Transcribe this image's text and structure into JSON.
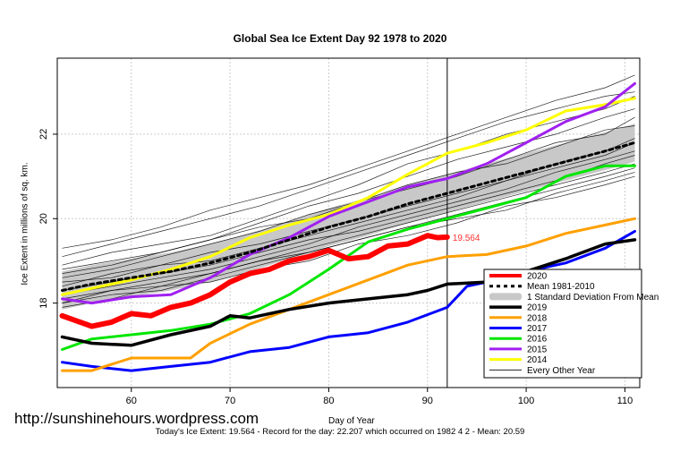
{
  "title": "Global Sea Ice Extent Day 92 1978 to 2020",
  "watermark": "http://sunshinehours.wordpress.com",
  "footnote": "Today's Ice Extent: 19.564  - Record for the day: 22.207 which occurred on 1982 4 2  - Mean: 20.59",
  "chart_data": {
    "type": "line",
    "title": "Global Sea Ice Extent Day 92 1978 to 2020",
    "xlabel": "Day of Year",
    "ylabel": "Ice Extent in millions of sq. km.",
    "xlim": [
      52.5,
      111.5
    ],
    "ylim": [
      16.0,
      23.8
    ],
    "x_ticks": [
      60,
      70,
      80,
      90,
      100,
      110
    ],
    "y_ticks": [
      18,
      20,
      22
    ],
    "grid": true,
    "legend_position": "bottom-right",
    "marker_day": 92,
    "annotation": {
      "x": 92,
      "y": 19.564,
      "text": "19.564",
      "color": "#ff3333"
    },
    "mean_band": {
      "x": [
        53,
        56,
        60,
        64,
        68,
        72,
        76,
        80,
        84,
        88,
        92,
        96,
        100,
        104,
        108,
        111
      ],
      "mean": [
        18.3,
        18.45,
        18.6,
        18.75,
        18.95,
        19.2,
        19.5,
        19.8,
        20.05,
        20.35,
        20.6,
        20.85,
        21.1,
        21.35,
        21.6,
        21.8
      ],
      "sd": [
        0.45,
        0.45,
        0.45,
        0.45,
        0.45,
        0.45,
        0.45,
        0.45,
        0.45,
        0.45,
        0.45,
        0.45,
        0.45,
        0.45,
        0.45,
        0.45
      ]
    },
    "series": [
      {
        "name": "2020",
        "color": "#ff0000",
        "width": 6,
        "x": [
          53,
          56,
          58,
          60,
          62,
          64,
          66,
          68,
          70,
          72,
          74,
          76,
          78,
          80,
          82,
          84,
          86,
          88,
          90,
          91,
          92
        ],
        "values": [
          17.7,
          17.45,
          17.55,
          17.75,
          17.7,
          17.9,
          18.0,
          18.2,
          18.5,
          18.7,
          18.8,
          19.0,
          19.1,
          19.25,
          19.05,
          19.1,
          19.35,
          19.4,
          19.6,
          19.55,
          19.564
        ]
      },
      {
        "name": "Mean 1981-2010",
        "color": "#000000",
        "width": 3,
        "dash": "4,4",
        "x": [
          53,
          56,
          60,
          64,
          68,
          72,
          76,
          80,
          84,
          88,
          92,
          96,
          100,
          104,
          108,
          111
        ],
        "values": [
          18.3,
          18.45,
          18.6,
          18.75,
          18.95,
          19.2,
          19.5,
          19.8,
          20.05,
          20.35,
          20.6,
          20.85,
          21.1,
          21.35,
          21.6,
          21.8
        ]
      },
      {
        "name": "2019",
        "color": "#000000",
        "width": 3.5,
        "x": [
          53,
          56,
          60,
          64,
          68,
          70,
          72,
          76,
          80,
          84,
          88,
          90,
          92,
          96,
          100,
          104,
          108,
          111
        ],
        "values": [
          17.2,
          17.05,
          17.0,
          17.25,
          17.45,
          17.7,
          17.65,
          17.85,
          18.0,
          18.1,
          18.2,
          18.3,
          18.45,
          18.5,
          18.75,
          19.05,
          19.4,
          19.5
        ]
      },
      {
        "name": "2018",
        "color": "#ffa000",
        "width": 3,
        "x": [
          53,
          56,
          60,
          64,
          66,
          68,
          72,
          76,
          80,
          84,
          88,
          92,
          96,
          100,
          104,
          108,
          111
        ],
        "values": [
          16.4,
          16.4,
          16.7,
          16.7,
          16.7,
          17.05,
          17.5,
          17.85,
          18.2,
          18.55,
          18.9,
          19.1,
          19.15,
          19.35,
          19.65,
          19.85,
          20.0
        ]
      },
      {
        "name": "2017",
        "color": "#0000ff",
        "width": 3,
        "x": [
          53,
          56,
          60,
          64,
          68,
          72,
          76,
          80,
          84,
          88,
          92,
          94,
          96,
          100,
          104,
          108,
          111
        ],
        "values": [
          16.6,
          16.5,
          16.4,
          16.5,
          16.6,
          16.85,
          16.95,
          17.2,
          17.3,
          17.55,
          17.9,
          18.4,
          18.5,
          18.75,
          18.95,
          19.3,
          19.7
        ]
      },
      {
        "name": "2016",
        "color": "#00e600",
        "width": 3,
        "x": [
          53,
          56,
          60,
          64,
          68,
          72,
          76,
          80,
          84,
          88,
          92,
          96,
          100,
          104,
          108,
          111
        ],
        "values": [
          16.9,
          17.15,
          17.25,
          17.35,
          17.5,
          17.75,
          18.2,
          18.8,
          19.45,
          19.75,
          20.0,
          20.25,
          20.5,
          21.0,
          21.25,
          21.25
        ]
      },
      {
        "name": "2015",
        "color": "#a020f0",
        "width": 3,
        "x": [
          53,
          56,
          60,
          64,
          68,
          72,
          76,
          80,
          84,
          88,
          92,
          96,
          100,
          104,
          108,
          111
        ],
        "values": [
          18.1,
          18.0,
          18.15,
          18.2,
          18.6,
          19.15,
          19.55,
          20.05,
          20.4,
          20.75,
          20.95,
          21.3,
          21.8,
          22.3,
          22.65,
          23.2
        ]
      },
      {
        "name": "2014",
        "color": "#ffff00",
        "width": 3,
        "x": [
          53,
          56,
          60,
          64,
          68,
          72,
          76,
          80,
          84,
          88,
          92,
          96,
          100,
          104,
          108,
          111
        ],
        "values": [
          18.2,
          18.35,
          18.55,
          18.8,
          19.1,
          19.55,
          19.85,
          20.1,
          20.5,
          21.05,
          21.55,
          21.8,
          22.1,
          22.55,
          22.7,
          22.85
        ]
      },
      {
        "name": "Every Other Year",
        "color": "#000000",
        "width": 0.8,
        "x": [
          53,
          111
        ],
        "values": [
          18.3,
          21.8
        ]
      }
    ],
    "other_years": {
      "color": "#000000",
      "x": [
        53,
        58,
        63,
        68,
        73,
        78,
        83,
        88,
        93,
        98,
        103,
        108,
        111
      ],
      "lines": [
        [
          18.2,
          18.4,
          18.6,
          18.8,
          19.1,
          19.4,
          19.8,
          20.1,
          20.4,
          20.7,
          21.1,
          21.4,
          21.6
        ],
        [
          18.8,
          19.0,
          19.2,
          19.5,
          19.9,
          20.3,
          20.6,
          21.0,
          21.4,
          21.7,
          22.0,
          22.4,
          22.6
        ],
        [
          18.0,
          18.2,
          18.3,
          18.6,
          18.9,
          19.2,
          19.5,
          19.8,
          20.1,
          20.4,
          20.7,
          21.0,
          21.2
        ],
        [
          19.1,
          19.4,
          19.7,
          20.0,
          20.3,
          20.7,
          21.1,
          21.5,
          21.9,
          22.3,
          22.6,
          22.9,
          23.0
        ],
        [
          18.5,
          18.6,
          18.9,
          19.2,
          19.4,
          19.7,
          20.0,
          20.3,
          20.6,
          20.9,
          21.2,
          21.5,
          21.8
        ],
        [
          17.9,
          18.1,
          18.4,
          18.5,
          18.8,
          19.0,
          19.4,
          19.6,
          19.9,
          20.3,
          20.5,
          20.8,
          21.0
        ],
        [
          18.6,
          18.8,
          19.1,
          19.4,
          19.7,
          20.1,
          20.4,
          20.8,
          21.1,
          21.3,
          21.7,
          22.1,
          22.2
        ],
        [
          18.4,
          18.7,
          18.9,
          19.0,
          19.3,
          19.6,
          19.9,
          20.2,
          20.5,
          20.9,
          21.3,
          21.6,
          21.9
        ],
        [
          18.9,
          19.2,
          19.4,
          19.6,
          20.0,
          20.4,
          20.8,
          21.3,
          21.6,
          22.0,
          22.3,
          22.6,
          22.9
        ],
        [
          18.1,
          18.3,
          18.5,
          18.7,
          19.0,
          19.3,
          19.6,
          19.9,
          20.2,
          20.5,
          20.8,
          21.1,
          21.3
        ],
        [
          18.7,
          18.9,
          19.2,
          19.5,
          19.8,
          20.0,
          20.4,
          20.7,
          21.0,
          21.4,
          21.8,
          22.0,
          22.4
        ],
        [
          18.3,
          18.5,
          18.7,
          18.9,
          19.2,
          19.5,
          19.7,
          20.0,
          20.3,
          20.6,
          20.9,
          21.3,
          21.5
        ],
        [
          19.3,
          19.5,
          19.8,
          20.2,
          20.5,
          20.8,
          21.2,
          21.6,
          22.0,
          22.4,
          22.8,
          23.1,
          23.4
        ],
        [
          18.0,
          18.3,
          18.4,
          18.7,
          19.0,
          19.2,
          19.5,
          19.8,
          20.0,
          20.2,
          20.6,
          20.9,
          21.1
        ]
      ]
    }
  }
}
